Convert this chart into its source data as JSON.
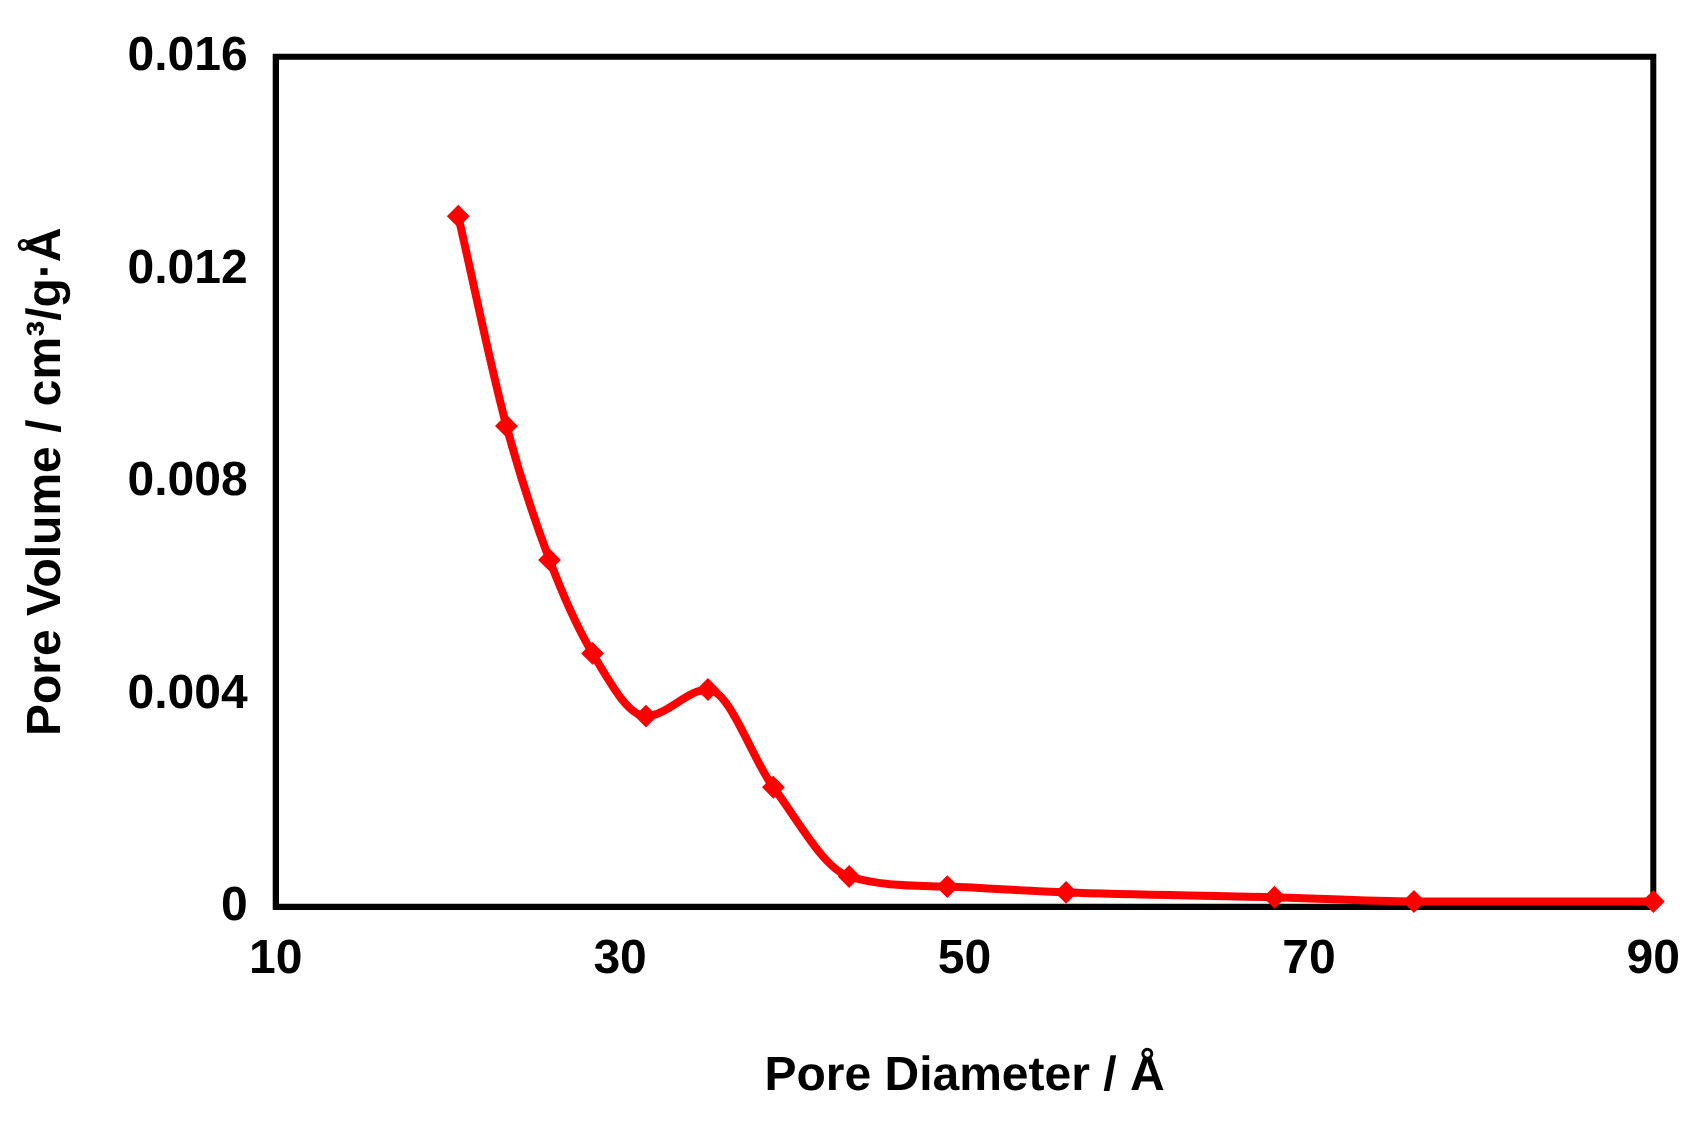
{
  "chart_data": {
    "type": "line",
    "xlabel": "Pore Diameter / Å",
    "ylabel": "Pore Volume / cm³/g·Å",
    "series": [
      {
        "color": "#ff0000",
        "x": [
          20.6,
          23.4,
          25.9,
          28.4,
          31.5,
          35.1,
          38.9,
          43.3,
          49.0,
          55.9,
          68.0,
          76.1,
          90
        ],
        "values": [
          0.013,
          0.00905,
          0.00653,
          0.00477,
          0.00359,
          0.00409,
          0.00225,
          0.00057,
          0.00038,
          0.00027,
          0.00018,
          0.0001,
          0.0001
        ]
      }
    ],
    "xlim": [
      10,
      90
    ],
    "xticks": [
      10,
      30,
      50,
      70,
      90
    ],
    "ylim": [
      0,
      0.016
    ],
    "yticks": [
      0,
      0.004,
      0.008,
      0.012,
      0.016
    ],
    "grid": false,
    "legend": false,
    "marker": "diamond",
    "line_style": "solid"
  }
}
